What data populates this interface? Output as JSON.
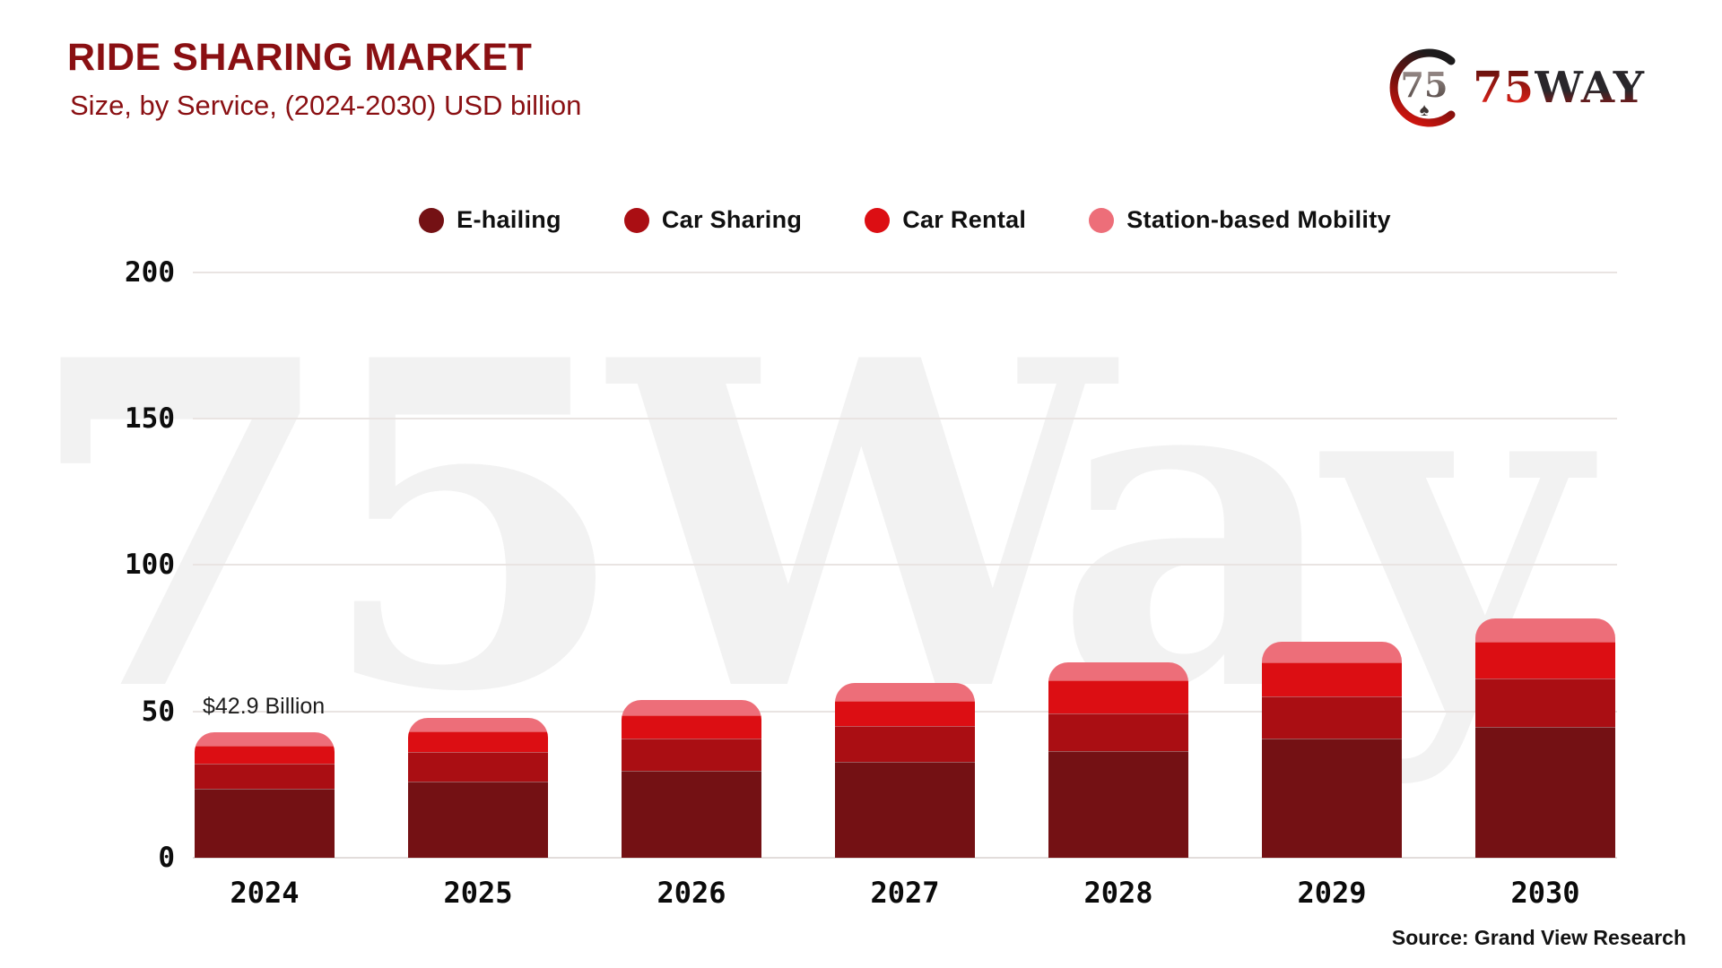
{
  "header": {
    "title": "RIDE SHARING MARKET",
    "subtitle": "Size, by Service, (2024-2030) USD billion"
  },
  "logo": {
    "part1": "75",
    "part2": "WAY"
  },
  "watermark": "75Way",
  "annotation": {
    "text": "$42.9 Billion"
  },
  "source": "Source: Grand View Research",
  "chart_data": {
    "type": "bar",
    "stacked": true,
    "title": "RIDE SHARING MARKET",
    "subtitle": "Size, by Service, (2024-2030) USD billion",
    "xlabel": "",
    "ylabel": "",
    "ylim": [
      0,
      200
    ],
    "yticks": [
      0,
      50,
      100,
      150,
      200
    ],
    "grid": true,
    "legend_position": "top",
    "categories": [
      "2024",
      "2025",
      "2026",
      "2027",
      "2028",
      "2029",
      "2030"
    ],
    "series": [
      {
        "name": "E-hailing",
        "color": "#741114",
        "values": [
          23.5,
          26.1,
          29.6,
          32.7,
          36.5,
          40.6,
          44.6
        ]
      },
      {
        "name": "Car Sharing",
        "color": "#aa0e13",
        "values": [
          8.5,
          9.9,
          11.0,
          12.3,
          12.9,
          14.6,
          16.7
        ]
      },
      {
        "name": "Car Rental",
        "color": "#dc0e13",
        "values": [
          6.2,
          7.1,
          8.1,
          8.7,
          11.2,
          11.4,
          12.4
        ]
      },
      {
        "name": "Station-based Mobility",
        "color": "#ed6e79",
        "values": [
          4.7,
          4.6,
          5.1,
          5.9,
          6.0,
          7.1,
          8.0
        ]
      }
    ],
    "totals": [
      42.9,
      47.7,
      53.8,
      59.6,
      66.6,
      73.7,
      81.7
    ],
    "annotation": {
      "text": "$42.9 Billion",
      "category": "2024",
      "value": 42.9
    }
  }
}
